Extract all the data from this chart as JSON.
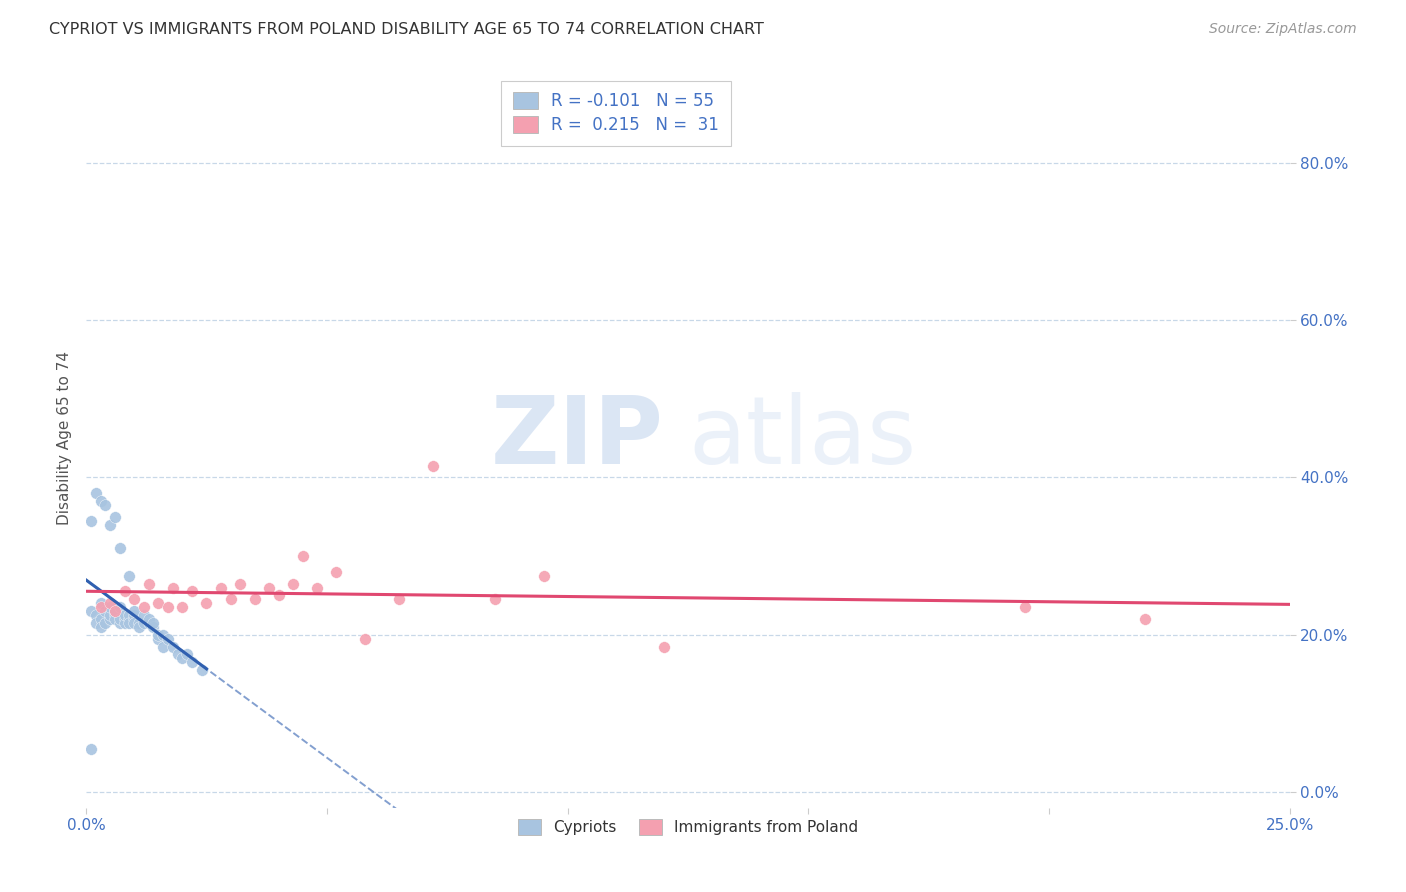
{
  "title": "CYPRIOT VS IMMIGRANTS FROM POLAND DISABILITY AGE 65 TO 74 CORRELATION CHART",
  "source": "Source: ZipAtlas.com",
  "ylabel": "Disability Age 65 to 74",
  "xlim": [
    0.0,
    0.25
  ],
  "ylim": [
    -0.02,
    0.92
  ],
  "xticks": [
    0.0,
    0.05,
    0.1,
    0.15,
    0.2,
    0.25
  ],
  "yticks": [
    0.0,
    0.2,
    0.4,
    0.6,
    0.8
  ],
  "ytick_labels": [
    "0.0%",
    "20.0%",
    "40.0%",
    "60.0%",
    "80.0%"
  ],
  "xtick_labels": [
    "0.0%",
    "",
    "",
    "",
    "",
    "25.0%"
  ],
  "legend_labels": [
    "Cypriots",
    "Immigrants from Poland"
  ],
  "cypriot_R": "-0.101",
  "cypriot_N": "55",
  "poland_R": "0.215",
  "poland_N": "31",
  "cypriot_color": "#a8c4e0",
  "poland_color": "#f4a0b0",
  "cypriot_line_color": "#3060b0",
  "poland_line_color": "#e04870",
  "background_color": "#ffffff",
  "grid_color": "#c8d8e8",
  "cypriot_x": [
    0.001,
    0.002,
    0.002,
    0.003,
    0.003,
    0.003,
    0.004,
    0.004,
    0.005,
    0.005,
    0.005,
    0.006,
    0.006,
    0.006,
    0.007,
    0.007,
    0.007,
    0.008,
    0.008,
    0.008,
    0.009,
    0.009,
    0.009,
    0.01,
    0.01,
    0.01,
    0.01,
    0.011,
    0.011,
    0.012,
    0.012,
    0.013,
    0.013,
    0.014,
    0.014,
    0.015,
    0.015,
    0.016,
    0.016,
    0.017,
    0.018,
    0.019,
    0.02,
    0.021,
    0.022,
    0.024,
    0.001,
    0.002,
    0.003,
    0.004,
    0.005,
    0.006,
    0.007,
    0.009,
    0.001
  ],
  "cypriot_y": [
    0.23,
    0.225,
    0.215,
    0.22,
    0.21,
    0.24,
    0.215,
    0.23,
    0.22,
    0.225,
    0.235,
    0.225,
    0.22,
    0.23,
    0.215,
    0.22,
    0.235,
    0.22,
    0.215,
    0.225,
    0.22,
    0.225,
    0.215,
    0.22,
    0.225,
    0.215,
    0.23,
    0.215,
    0.21,
    0.215,
    0.225,
    0.215,
    0.22,
    0.21,
    0.215,
    0.195,
    0.2,
    0.2,
    0.185,
    0.195,
    0.185,
    0.175,
    0.17,
    0.175,
    0.165,
    0.155,
    0.345,
    0.38,
    0.37,
    0.365,
    0.34,
    0.35,
    0.31,
    0.275,
    0.055
  ],
  "poland_x": [
    0.003,
    0.005,
    0.006,
    0.008,
    0.01,
    0.012,
    0.013,
    0.015,
    0.017,
    0.018,
    0.02,
    0.022,
    0.025,
    0.028,
    0.03,
    0.032,
    0.035,
    0.038,
    0.04,
    0.043,
    0.045,
    0.048,
    0.052,
    0.058,
    0.065,
    0.072,
    0.085,
    0.095,
    0.12,
    0.195,
    0.22
  ],
  "poland_y": [
    0.235,
    0.24,
    0.23,
    0.255,
    0.245,
    0.235,
    0.265,
    0.24,
    0.235,
    0.26,
    0.235,
    0.255,
    0.24,
    0.26,
    0.245,
    0.265,
    0.245,
    0.26,
    0.25,
    0.265,
    0.3,
    0.26,
    0.28,
    0.195,
    0.245,
    0.415,
    0.245,
    0.275,
    0.185,
    0.235,
    0.22
  ],
  "watermark_zip": "ZIP",
  "watermark_atlas": "atlas"
}
